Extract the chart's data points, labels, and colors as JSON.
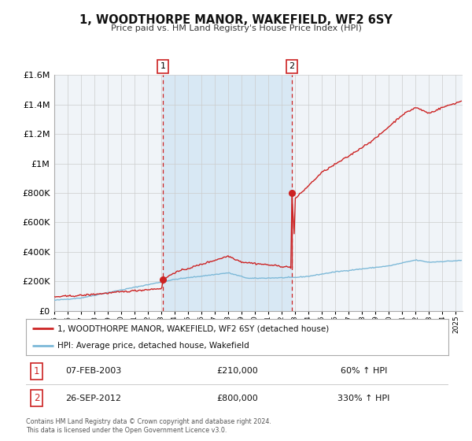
{
  "title": "1, WOODTHORPE MANOR, WAKEFIELD, WF2 6SY",
  "subtitle": "Price paid vs. HM Land Registry's House Price Index (HPI)",
  "legend_line1": "1, WOODTHORPE MANOR, WAKEFIELD, WF2 6SY (detached house)",
  "legend_line2": "HPI: Average price, detached house, Wakefield",
  "sale1_date": "07-FEB-2003",
  "sale1_price": "£210,000",
  "sale1_hpi": "60% ↑ HPI",
  "sale2_date": "26-SEP-2012",
  "sale2_price": "£800,000",
  "sale2_hpi": "330% ↑ HPI",
  "footer1": "Contains HM Land Registry data © Crown copyright and database right 2024.",
  "footer2": "This data is licensed under the Open Government Licence v3.0.",
  "hpi_color": "#7db9d8",
  "price_color": "#cc2222",
  "background_color": "#ffffff",
  "plot_bg_color": "#f0f4f8",
  "shade_color": "#d8e8f4",
  "ylim": [
    0,
    1600000
  ],
  "yticks": [
    0,
    200000,
    400000,
    600000,
    800000,
    1000000,
    1200000,
    1400000,
    1600000
  ],
  "ytick_labels": [
    "£0",
    "£200K",
    "£400K",
    "£600K",
    "£800K",
    "£1M",
    "£1.2M",
    "£1.4M",
    "£1.6M"
  ],
  "sale1_year": 2003.1,
  "sale1_price_val": 210000,
  "sale2_year": 2012.73,
  "sale2_price_val": 800000,
  "sale2_drop_val": 295000,
  "xmin": 1995,
  "xmax": 2025.5
}
